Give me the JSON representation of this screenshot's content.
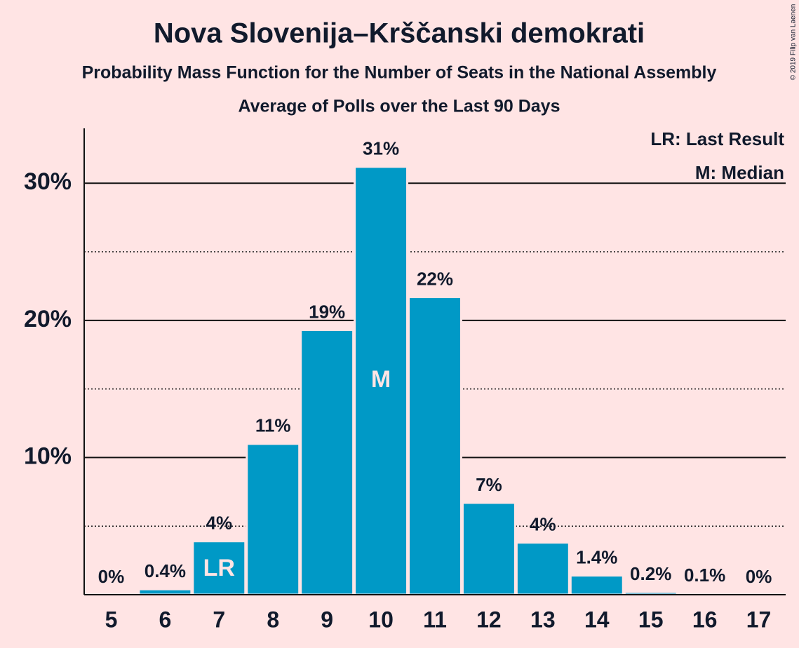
{
  "chart_data": {
    "type": "bar",
    "title": "Nova Slovenija–Krščanski demokrati",
    "subtitle": "Probability Mass Function for the Number of Seats in the National Assembly",
    "subtitle2": "Average of Polls over the Last 90 Days",
    "categories": [
      5,
      6,
      7,
      8,
      9,
      10,
      11,
      12,
      13,
      14,
      15,
      16,
      17
    ],
    "values": [
      0,
      0.4,
      3.9,
      11,
      19.3,
      31.2,
      21.7,
      6.7,
      3.8,
      1.4,
      0.2,
      0.1,
      0
    ],
    "value_labels": [
      "0%",
      "0.4%",
      "4%",
      "11%",
      "19%",
      "31%",
      "22%",
      "7%",
      "4%",
      "1.4%",
      "0.2%",
      "0.1%",
      "0%"
    ],
    "color": "#0099c6",
    "ylim": [
      0,
      34
    ],
    "yticks": [
      {
        "value": 10,
        "label": "10%"
      },
      {
        "value": 20,
        "label": "20%"
      },
      {
        "value": 30,
        "label": "30%"
      }
    ],
    "minor_yticks": [
      5,
      15,
      25
    ],
    "grid": true,
    "bar_annotations": [
      {
        "text": "LR",
        "at": 7
      },
      {
        "text": "M",
        "at": 10
      }
    ],
    "legend": [
      "LR: Last Result",
      "M: Median"
    ],
    "credit": "© 2019 Filip van Laenen"
  }
}
